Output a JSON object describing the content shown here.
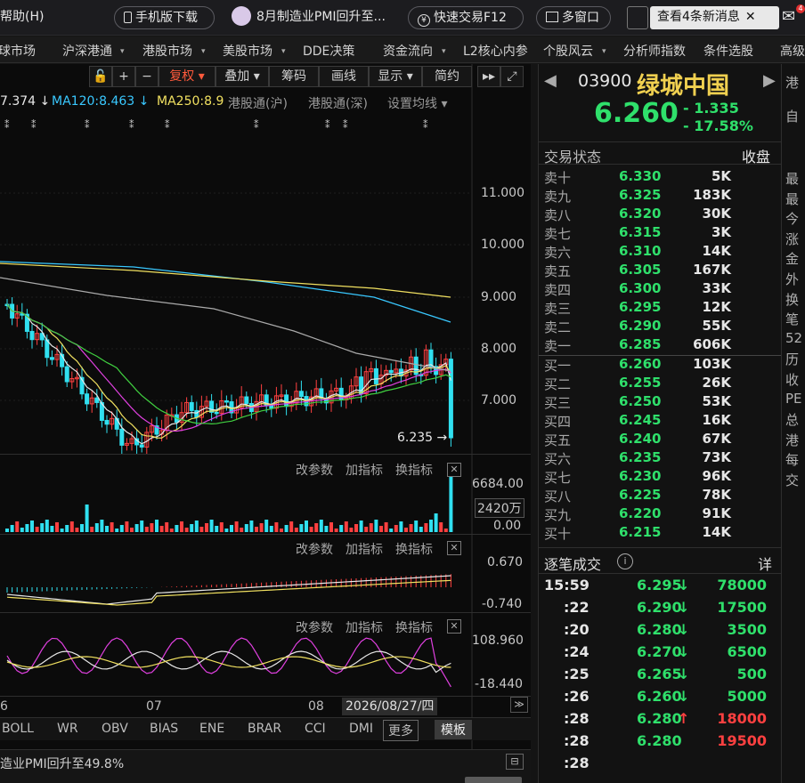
{
  "topbar": {
    "help_menu": "帮助(H)",
    "mobile_download": "手机版下载",
    "headline_pill": "8月制造业PMI回升至...",
    "quick_trade": "快速交易F12",
    "multi_window": "多窗口",
    "news_button": "查看4条新消息",
    "mail_badge": "4"
  },
  "nav": [
    "球市场",
    "沪深港通",
    "港股市场",
    "美股市场",
    "DDE决策",
    "资金流向",
    "L2核心内参",
    "个股风云",
    "分析师指数",
    "条件选股",
    "高级"
  ],
  "chart_toolbar": [
    "复权",
    "叠加",
    "筹码",
    "画线",
    "显示",
    "简约"
  ],
  "ma_legend": [
    {
      "label": "7.374 ↓",
      "color": "#e8e8e8"
    },
    {
      "label": "MA120:8.463 ↓",
      "color": "#39c8ff"
    },
    {
      "label": "MA250:8.9",
      "color": "#f0e060"
    },
    {
      "label": "港股通(沪)",
      "color": "#9a9a9a"
    },
    {
      "label": "港股通(深)",
      "color": "#9a9a9a"
    },
    {
      "label": "设置均线",
      "color": "#9a9a9a"
    }
  ],
  "price_axis": [
    "11.000",
    "10.000",
    "9.000",
    "8.000",
    "7.000"
  ],
  "last_price_marker": "6.235",
  "panel_controls": {
    "params": "改参数",
    "add": "加指标",
    "switch": "换指标"
  },
  "volume_axis": {
    "top": "6684.00",
    "mid": "2420万",
    "bottom": "0.00"
  },
  "macd_axis": {
    "top": "0.670",
    "bottom": "-0.740"
  },
  "third_axis": {
    "top": "108.960",
    "bottom": "-18.440"
  },
  "time_axis": {
    "left": "6",
    "mid": "07",
    "right": "08",
    "cursor_date": "2026/08/27/四"
  },
  "indicators": [
    "BOLL",
    "WR",
    "OBV",
    "BIAS",
    "ENE",
    "BRAR",
    "CCI",
    "DMI"
  ],
  "more_button": "更多",
  "template_button": "模板",
  "ticker_text": "造业PMI回升至49.8%",
  "stock": {
    "code": "03900",
    "name": "绿城中国",
    "price": "6.260",
    "change": "- 1.335",
    "change_pct": "- 17.58%"
  },
  "status": {
    "label": "交易状态",
    "value": "收盘"
  },
  "asks": [
    {
      "label": "卖十",
      "price": "6.330",
      "vol": "5K"
    },
    {
      "label": "卖九",
      "price": "6.325",
      "vol": "183K"
    },
    {
      "label": "卖八",
      "price": "6.320",
      "vol": "30K"
    },
    {
      "label": "卖七",
      "price": "6.315",
      "vol": "3K"
    },
    {
      "label": "卖六",
      "price": "6.310",
      "vol": "14K"
    },
    {
      "label": "卖五",
      "price": "6.305",
      "vol": "167K"
    },
    {
      "label": "卖四",
      "price": "6.300",
      "vol": "33K"
    },
    {
      "label": "卖三",
      "price": "6.295",
      "vol": "12K"
    },
    {
      "label": "卖二",
      "price": "6.290",
      "vol": "55K"
    },
    {
      "label": "卖一",
      "price": "6.285",
      "vol": "606K"
    }
  ],
  "bids": [
    {
      "label": "买一",
      "price": "6.260",
      "vol": "103K"
    },
    {
      "label": "买二",
      "price": "6.255",
      "vol": "26K"
    },
    {
      "label": "买三",
      "price": "6.250",
      "vol": "53K"
    },
    {
      "label": "买四",
      "price": "6.245",
      "vol": "16K"
    },
    {
      "label": "买五",
      "price": "6.240",
      "vol": "67K"
    },
    {
      "label": "买六",
      "price": "6.235",
      "vol": "73K"
    },
    {
      "label": "买七",
      "price": "6.230",
      "vol": "96K"
    },
    {
      "label": "买八",
      "price": "6.225",
      "vol": "78K"
    },
    {
      "label": "买九",
      "price": "6.220",
      "vol": "91K"
    },
    {
      "label": "买十",
      "price": "6.215",
      "vol": "14K"
    }
  ],
  "trades_header": {
    "title": "逐笔成交",
    "detail": "详"
  },
  "trades": [
    {
      "time": "15:59",
      "price": "6.295",
      "dir": "↓",
      "vol": "78000",
      "up": false
    },
    {
      "time": ":22",
      "price": "6.290",
      "dir": "↓",
      "vol": "17500",
      "up": false
    },
    {
      "time": ":20",
      "price": "6.280",
      "dir": "↓",
      "vol": "3500",
      "up": false
    },
    {
      "time": ":24",
      "price": "6.270",
      "dir": "↓",
      "vol": "6500",
      "up": false
    },
    {
      "time": ":25",
      "price": "6.265",
      "dir": "↓",
      "vol": "500",
      "up": false
    },
    {
      "time": ":26",
      "price": "6.260",
      "dir": "↓",
      "vol": "5000",
      "up": false
    },
    {
      "time": ":28",
      "price": "6.280",
      "dir": "↑",
      "vol": "18000",
      "up": true
    },
    {
      "time": ":28",
      "price": "6.280",
      "dir": "",
      "vol": "19500",
      "up": true
    },
    {
      "time": ":28",
      "price": "",
      "dir": "",
      "vol": "",
      "up": true
    }
  ],
  "side_labels": [
    "最",
    "最",
    "今",
    "涨",
    "金",
    "外",
    "换",
    "笔",
    "52",
    "历",
    "收",
    "PE",
    "总",
    "港",
    "每",
    "交"
  ],
  "side_top": [
    "港",
    "自"
  ],
  "colors": {
    "up": "#ff4040",
    "down": "#2fe06b",
    "accent": "#ff5a3c",
    "bg": "#0b0b0b"
  }
}
